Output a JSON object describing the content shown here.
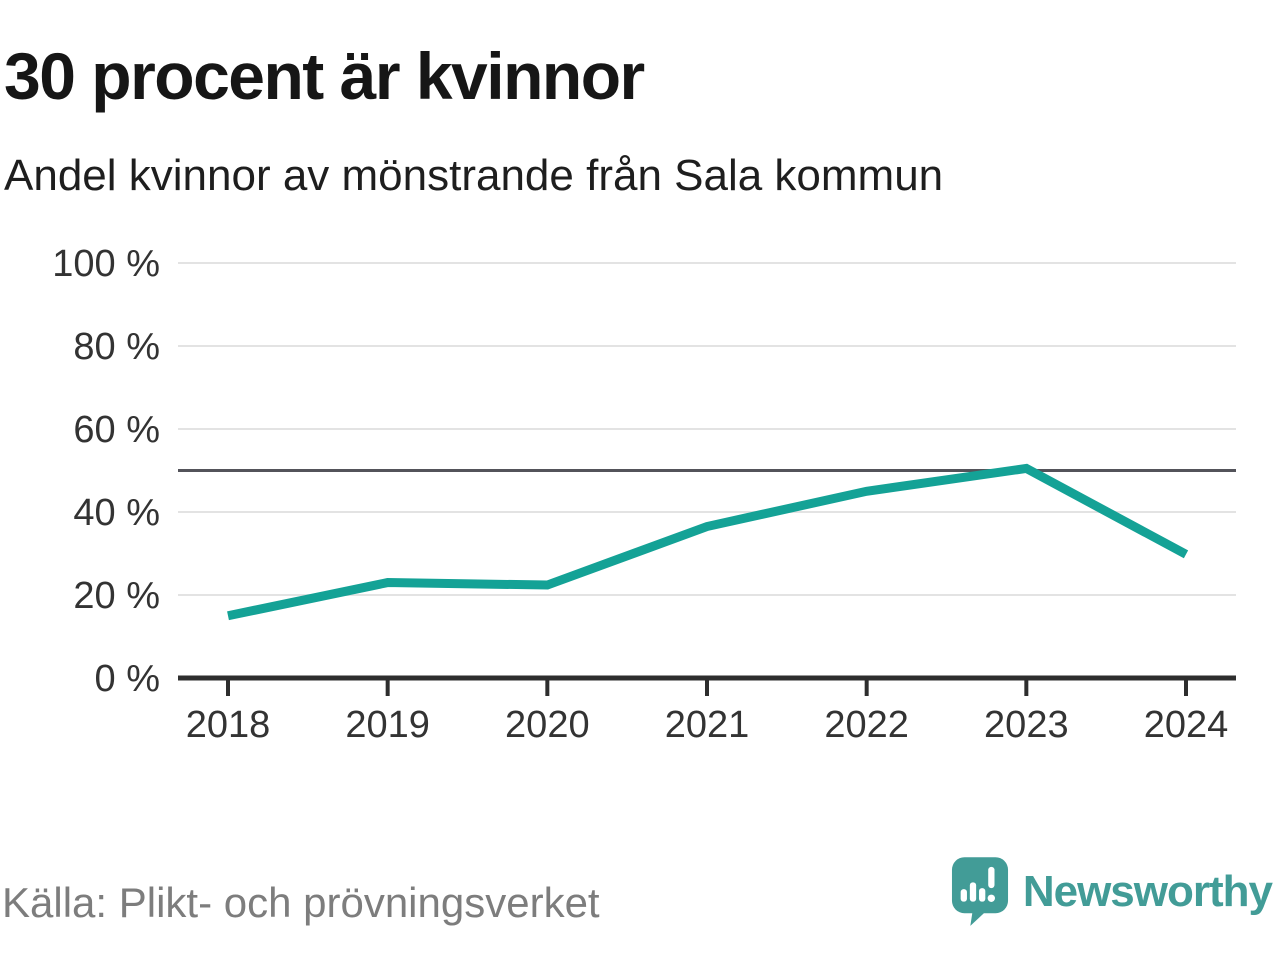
{
  "chart_data": {
    "type": "line",
    "title": "30 procent är kvinnor",
    "subtitle": "Andel kvinnor av mönstrande från Sala kommun",
    "source": "Källa: Plikt- och prövningsverket",
    "x": [
      2018,
      2019,
      2020,
      2021,
      2022,
      2023,
      2024
    ],
    "series": [
      {
        "name": "Andel kvinnor av mönstrande",
        "color": "#14a296",
        "values": [
          15,
          23,
          22.4,
          36.5,
          45,
          50.5,
          29.8
        ]
      }
    ],
    "unit": "%",
    "ylim": [
      0,
      100
    ],
    "yticks": [
      0,
      20,
      40,
      60,
      80,
      100
    ],
    "ytick_suffix": " %",
    "reference_line": {
      "value": 50
    },
    "grid": "horizontal",
    "legend": "none",
    "xlabel": "",
    "ylabel": ""
  },
  "brand": {
    "name": "Newsworthy"
  },
  "colors": {
    "line": "#14a296",
    "grid": "#e3e3e3",
    "reference": "#53535a",
    "axis": "#2e2e2e",
    "text": "#333333",
    "muted": "#7d7d7d",
    "brand": "#429c97"
  }
}
